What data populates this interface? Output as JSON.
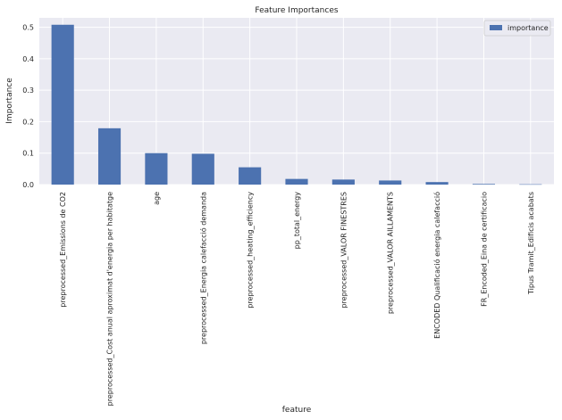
{
  "chart_data": {
    "type": "bar",
    "title": "Feature Importances",
    "xlabel": "feature",
    "ylabel": "Importance",
    "ylim": [
      0,
      0.53
    ],
    "yticks": [
      "0.0",
      "0.1",
      "0.2",
      "0.3",
      "0.4",
      "0.5"
    ],
    "grid": true,
    "legend_position": "top-right",
    "categories": [
      "preprocessed_Emissions de CO2",
      "preprocessed_Cost anual aproximat d'energia per habitatge",
      "age",
      "preprocessed_Energia calefacció demanda",
      "preprocessed_heating_efficiency",
      "pp_total_energy",
      "preprocessed_VALOR FINESTRES",
      "preprocessed_VALOR AILLAMENTS",
      "ENCODED Qualificació energia calefacció",
      "FR_Encoded_Eina de certificacio",
      "Tipus Tramit_Edificis acabats"
    ],
    "series": [
      {
        "name": "importance",
        "values": [
          0.508,
          0.179,
          0.1,
          0.098,
          0.055,
          0.018,
          0.016,
          0.013,
          0.008,
          0.002,
          0.001
        ]
      }
    ]
  },
  "colors": {
    "bar": "#4c72b0",
    "plot_bg": "#eaeaf2",
    "grid": "#ffffff",
    "text": "#262626"
  }
}
